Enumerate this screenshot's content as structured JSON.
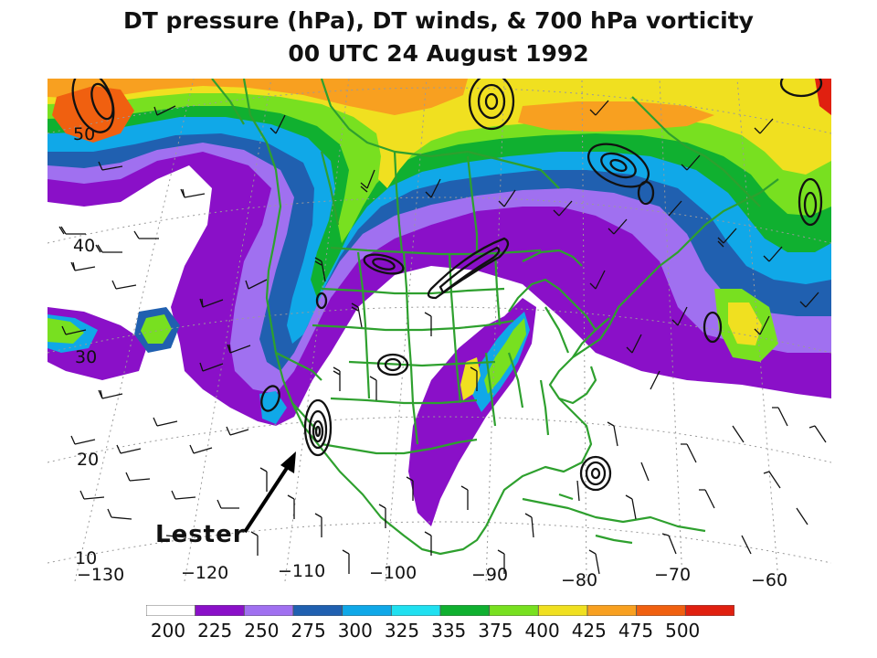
{
  "title": {
    "line1": "DT pressure (hPa), DT winds, & 700 hPa vorticity",
    "line2": "00 UTC 24 August 1992"
  },
  "annotation": {
    "storm_label": "Lester"
  },
  "latitude_labels": [
    "50",
    "40",
    "30",
    "20",
    "10"
  ],
  "longitude_labels": [
    "−130",
    "−120",
    "−110",
    "−100",
    "−90",
    "−80",
    "−70",
    "−60"
  ],
  "colorbar": {
    "ticks": [
      "200",
      "225",
      "250",
      "275",
      "300",
      "325",
      "335",
      "375",
      "400",
      "425",
      "475",
      "500"
    ],
    "colors": [
      "#ffffff",
      "#8a10c8",
      "#a070f0",
      "#2060b0",
      "#10a8e8",
      "#20e0f0",
      "#10b030",
      "#78e020",
      "#f0e020",
      "#f8a020",
      "#f06010",
      "#e02010"
    ]
  },
  "colors": {
    "coastline": "#2ea02e",
    "contours": "#111111"
  }
}
